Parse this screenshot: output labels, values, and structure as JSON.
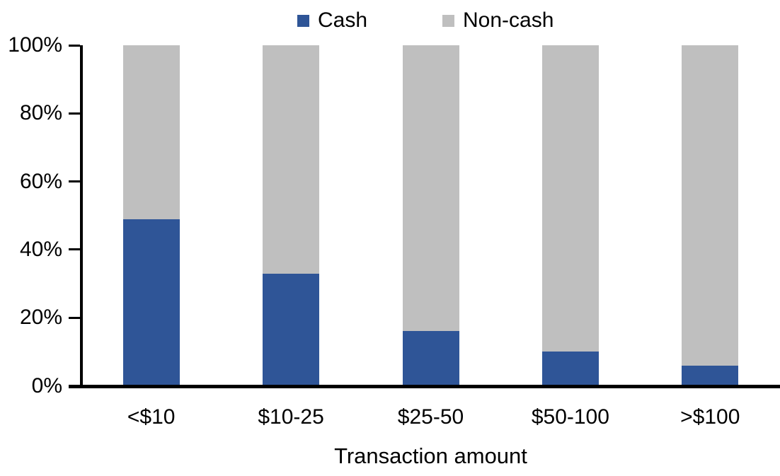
{
  "chart_data": {
    "type": "bar",
    "stacked": true,
    "orientation": "vertical",
    "categories": [
      "<$10",
      "$10-25",
      "$25-50",
      "$50-100",
      ">$100"
    ],
    "series": [
      {
        "name": "Cash",
        "color": "#2F5597",
        "values": [
          49,
          33,
          16,
          10,
          6
        ]
      },
      {
        "name": "Non-cash",
        "color": "#BFBFBF",
        "values": [
          51,
          67,
          84,
          90,
          94
        ]
      }
    ],
    "title": "",
    "xlabel": "Transaction amount",
    "ylabel": "",
    "ylim": [
      0,
      100
    ],
    "ytick_step": 20,
    "ytick_labels": [
      "0%",
      "20%",
      "40%",
      "60%",
      "80%",
      "100%"
    ],
    "unit": "%",
    "grid": false,
    "legend_position": "top",
    "axis_color": "#000000",
    "background_color": "#FFFFFF"
  }
}
